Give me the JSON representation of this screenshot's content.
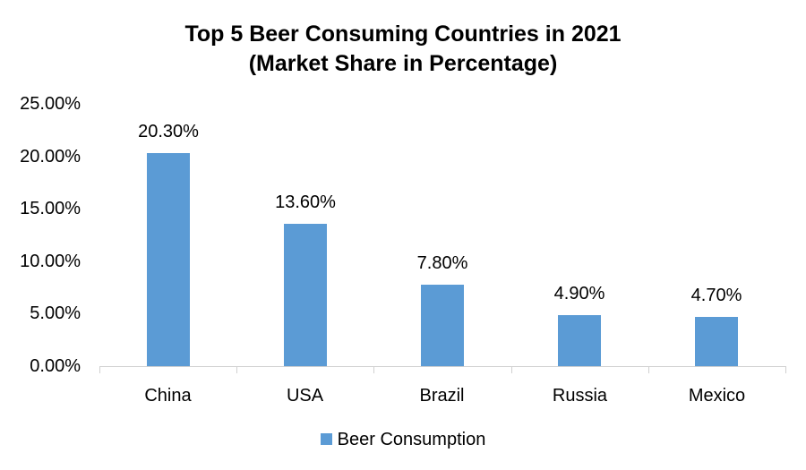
{
  "chart_data": {
    "type": "bar",
    "title": "Top 5 Beer Consuming Countries in 2021",
    "subtitle": "(Market Share in Percentage)",
    "categories": [
      "China",
      "USA",
      "Brazil",
      "Russia",
      "Mexico"
    ],
    "series": [
      {
        "name": "Beer Consumption",
        "values": [
          20.3,
          13.6,
          7.8,
          4.9,
          4.7
        ],
        "color": "#5b9bd5"
      }
    ],
    "data_labels": [
      "20.30%",
      "13.60%",
      "7.80%",
      "4.90%",
      "4.70%"
    ],
    "xlabel": "",
    "ylabel": "",
    "ylim": [
      0,
      25
    ],
    "yticks": [
      "0.00%",
      "5.00%",
      "10.00%",
      "15.00%",
      "20.00%",
      "25.00%"
    ],
    "grid": false,
    "legend_position": "bottom"
  },
  "legend": {
    "label": "Beer Consumption"
  }
}
